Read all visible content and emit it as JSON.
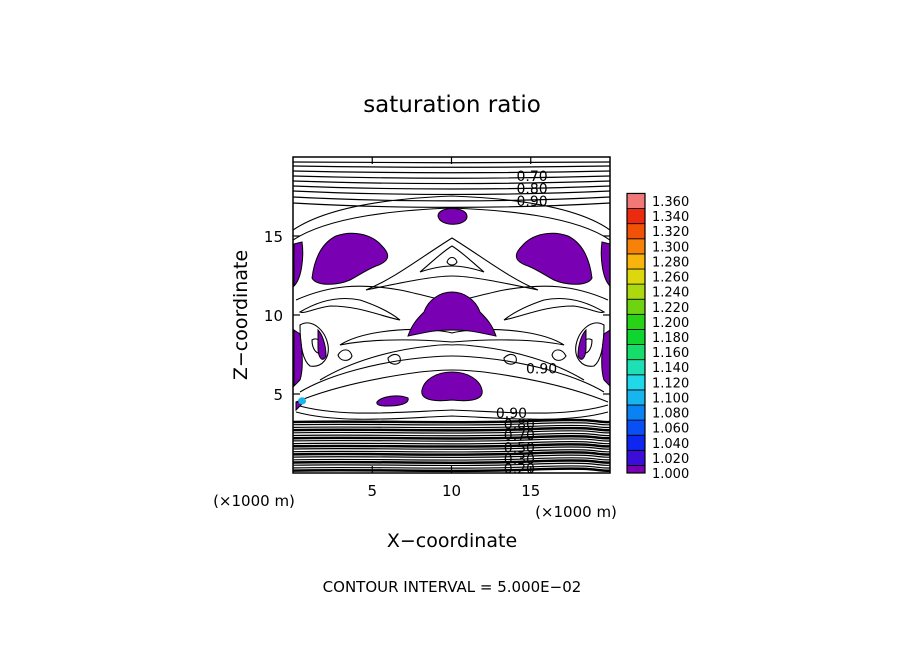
{
  "chart_data": {
    "type": "contour",
    "title": "saturation ratio",
    "xlabel": "X−coordinate",
    "ylabel": "Z−coordinate",
    "x_unit": "(×1000 m)",
    "z_unit": "(×1000 m)",
    "xlim": [
      0,
      20
    ],
    "ylim": [
      0,
      20
    ],
    "x_ticks": [
      5,
      10,
      15
    ],
    "y_ticks": [
      5,
      10,
      15
    ],
    "contour_labels": [
      {
        "text": "0.70",
        "x": 14.1,
        "z": 18.8
      },
      {
        "text": "0.80",
        "x": 14.1,
        "z": 18.0
      },
      {
        "text": "0.90",
        "x": 14.1,
        "z": 17.2
      },
      {
        "text": "0.90",
        "x": 14.7,
        "z": 6.6
      },
      {
        "text": "0.90",
        "x": 12.8,
        "z": 3.8
      },
      {
        "text": "0.80",
        "x": 13.3,
        "z": 3.1
      },
      {
        "text": "0.70",
        "x": 13.3,
        "z": 2.4
      },
      {
        "text": "0.50",
        "x": 13.3,
        "z": 1.6
      },
      {
        "text": "0.30",
        "x": 13.3,
        "z": 0.9
      },
      {
        "text": "0.20",
        "x": 13.3,
        "z": 0.3
      }
    ],
    "colorbar": {
      "levels": [
        "1.000",
        "1.020",
        "1.040",
        "1.060",
        "1.080",
        "1.100",
        "1.120",
        "1.140",
        "1.160",
        "1.180",
        "1.200",
        "1.220",
        "1.240",
        "1.260",
        "1.280",
        "1.300",
        "1.320",
        "1.340",
        "1.360"
      ],
      "colors": [
        "#7a00b4",
        "#3a0ed8",
        "#0d26f0",
        "#0a4ff5",
        "#0b82f2",
        "#18b4ee",
        "#20d8e8",
        "#1ee0b4",
        "#16dc6a",
        "#10d430",
        "#28d214",
        "#6ed412",
        "#acd810",
        "#dcd80e",
        "#f6b40c",
        "#f6820a",
        "#f25208",
        "#ec2a10",
        "#f07878"
      ]
    },
    "footer": "CONTOUR INTERVAL = 5.000E−02"
  }
}
